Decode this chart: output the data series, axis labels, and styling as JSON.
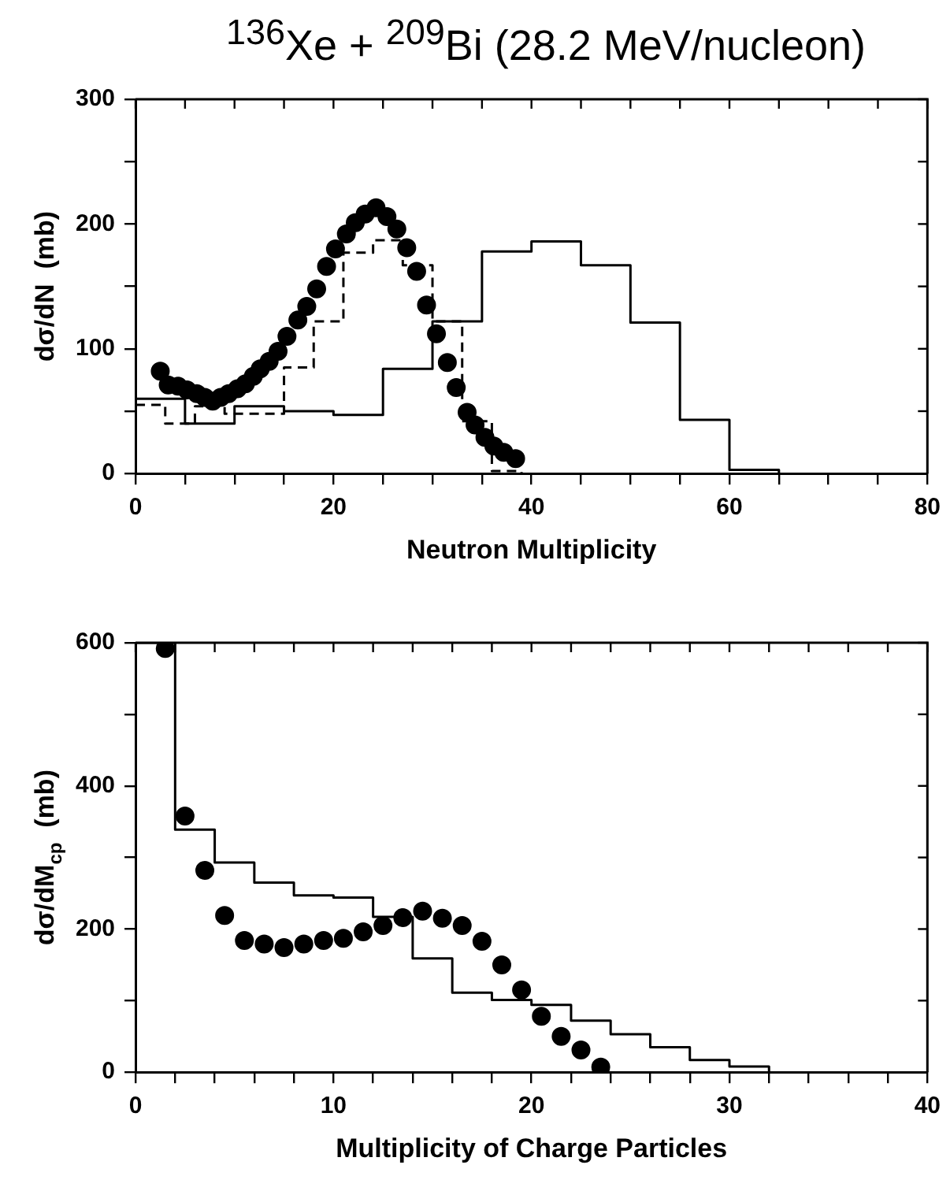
{
  "chart_data": [
    {
      "type": "step",
      "title": "$^{136}$Xe + $^{209}$Bi (28.2 MeV/nucleon)",
      "xlabel": "Neutron Multiplicity",
      "ylabel": "dσ/dN  (mb)",
      "xlim": [
        0,
        80
      ],
      "ylim": [
        0,
        300
      ],
      "xticks": [
        0,
        {
          "value": 5,
          "label": null
        },
        {
          "value": 10,
          "label": null
        },
        {
          "value": 15,
          "label": null
        },
        20,
        {
          "value": 25,
          "label": null
        },
        {
          "value": 30,
          "label": null
        },
        {
          "value": 35,
          "label": null
        },
        40,
        {
          "value": 45,
          "label": null
        },
        {
          "value": 50,
          "label": null
        },
        {
          "value": 55,
          "label": null
        },
        60,
        {
          "value": 65,
          "label": null
        },
        {
          "value": 70,
          "label": null
        },
        {
          "value": 75,
          "label": null
        },
        80
      ],
      "yticks": [
        0,
        {
          "value": 50,
          "label": null
        },
        100,
        {
          "value": 150,
          "label": null
        },
        200,
        {
          "value": 250,
          "label": null
        },
        300
      ],
      "grid": false,
      "legend": false,
      "series": [
        {
          "type": "step",
          "color": "#000000",
          "line_style": "solid",
          "marker": "none",
          "x": [
            0,
            5,
            10,
            15,
            20,
            25,
            30,
            35,
            40,
            45,
            50,
            55,
            60,
            65
          ],
          "values": [
            60,
            40,
            54,
            50,
            47,
            84,
            122,
            178,
            186,
            167,
            121,
            43,
            3,
            0
          ]
        },
        {
          "type": "step",
          "color": "#000000",
          "line_style": "dashed",
          "marker": "none",
          "x": [
            0,
            3,
            6,
            9,
            12,
            15,
            18,
            21,
            24,
            27,
            30,
            33,
            36,
            39
          ],
          "values": [
            55,
            40,
            54,
            48,
            48,
            85,
            122,
            177,
            187,
            167,
            122,
            42,
            2,
            0
          ]
        },
        {
          "type": "scatter",
          "color": "#000000",
          "marker": "circle",
          "x": [
            2.5,
            3.3,
            4.3,
            5.2,
            6.2,
            7,
            7.8,
            8.6,
            9.4,
            10.3,
            11.1,
            11.9,
            12.6,
            13.5,
            14.4,
            15.3,
            16.4,
            17.3,
            18.3,
            19.3,
            20.2,
            21.3,
            22.2,
            23.2,
            24.3,
            25.4,
            26.4,
            27.4,
            28.4,
            29.4,
            30.4,
            31.5,
            32.4,
            33.5,
            34.3,
            35.3,
            36.2,
            37.2,
            38.4
          ],
          "values": [
            82,
            71,
            70,
            67,
            64,
            61,
            58,
            61,
            64,
            68,
            72,
            78,
            84,
            90,
            98,
            110,
            123,
            134,
            148,
            166,
            180,
            192,
            201,
            208,
            213,
            206,
            196,
            181,
            162,
            135,
            112,
            89,
            69,
            49,
            39,
            29,
            22,
            17,
            12
          ]
        }
      ]
    },
    {
      "type": "step",
      "xlabel": "Multiplicity of Charge Particles",
      "ylabel": "dσ/dM$_{cp}$  (mb)",
      "xlim": [
        0,
        40
      ],
      "ylim": [
        0,
        600
      ],
      "xticks": [
        0,
        {
          "value": 2,
          "label": null
        },
        {
          "value": 4,
          "label": null
        },
        {
          "value": 6,
          "label": null
        },
        {
          "value": 8,
          "label": null
        },
        10,
        {
          "value": 12,
          "label": null
        },
        {
          "value": 14,
          "label": null
        },
        {
          "value": 16,
          "label": null
        },
        {
          "value": 18,
          "label": null
        },
        20,
        {
          "value": 22,
          "label": null
        },
        {
          "value": 24,
          "label": null
        },
        {
          "value": 26,
          "label": null
        },
        {
          "value": 28,
          "label": null
        },
        30,
        {
          "value": 32,
          "label": null
        },
        {
          "value": 34,
          "label": null
        },
        {
          "value": 36,
          "label": null
        },
        {
          "value": 38,
          "label": null
        },
        40
      ],
      "yticks": [
        0,
        {
          "value": 100,
          "label": null
        },
        200,
        {
          "value": 300,
          "label": null
        },
        400,
        {
          "value": 500,
          "label": null
        },
        600
      ],
      "grid": false,
      "legend": false,
      "series": [
        {
          "type": "step",
          "color": "#000000",
          "line_style": "solid",
          "marker": "none",
          "x": [
            0,
            2,
            4,
            6,
            8,
            10,
            12,
            14,
            16,
            18,
            20,
            22,
            24,
            26,
            28,
            30,
            32
          ],
          "values": [
            600,
            339,
            293,
            265,
            247,
            244,
            217,
            159,
            111,
            101,
            94,
            72,
            53,
            35,
            17,
            8,
            0
          ]
        },
        {
          "type": "scatter",
          "color": "#000000",
          "marker": "circle",
          "x": [
            1.5,
            2.5,
            3.5,
            4.5,
            5.5,
            6.5,
            7.5,
            8.5,
            9.5,
            10.5,
            11.5,
            12.5,
            13.5,
            14.5,
            15.5,
            16.5,
            17.5,
            18.5,
            19.5,
            20.5,
            21.5,
            22.5,
            23.5
          ],
          "values": [
            592,
            358,
            282,
            219,
            184,
            179,
            174,
            179,
            184,
            187,
            196,
            205,
            216,
            225,
            215,
            205,
            183,
            150,
            115,
            78,
            50,
            31,
            7
          ]
        }
      ]
    }
  ]
}
